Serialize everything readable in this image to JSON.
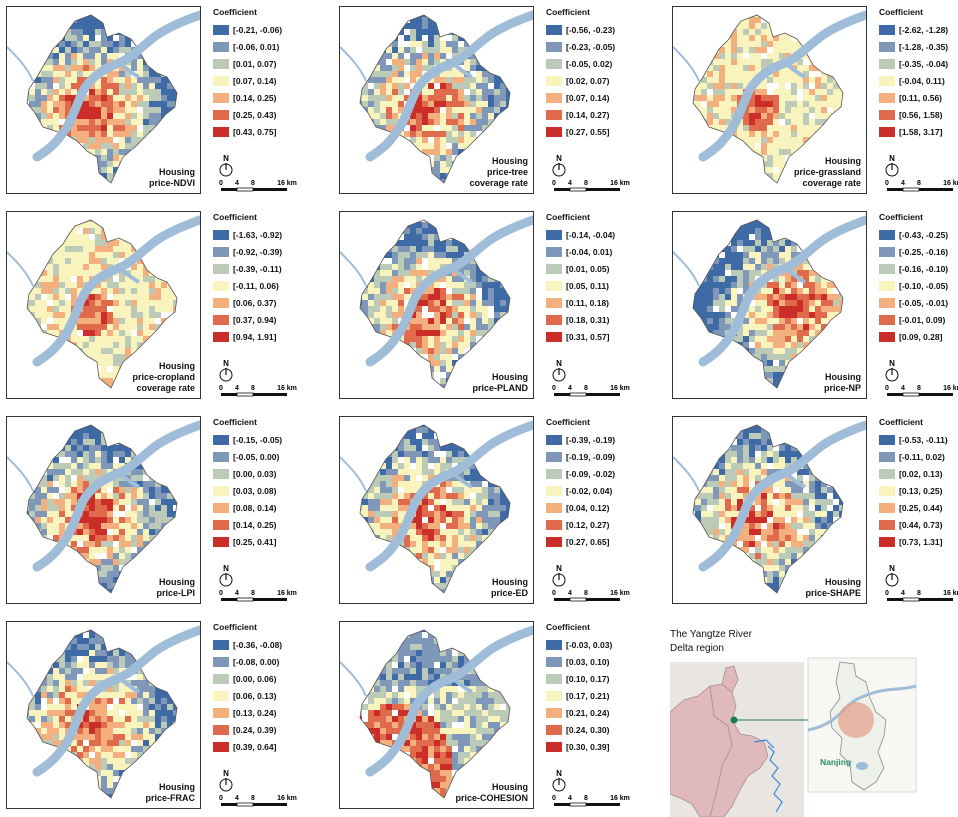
{
  "legend_title": "Coefficient",
  "north_label": "N",
  "scale": {
    "zero": "0",
    "four": "4",
    "eight": "8",
    "sixteen": "16 km"
  },
  "colors": [
    "#3e6aa6",
    "#7f98ba",
    "#bccab8",
    "#f9f3bd",
    "#f3b07e",
    "#e06a4c",
    "#cb2d29"
  ],
  "water_color": "#9fbcd8",
  "panels": [
    {
      "label": [
        "Housing",
        "price-NDVI"
      ],
      "ranges": [
        "[-0.21, -0.06)",
        "[-0.06, 0.01)",
        "[0.01, 0.07)",
        "[0.07, 0.14)",
        "[0.14, 0.25)",
        "[0.25, 0.43)",
        "[0.43, 0.75]"
      ]
    },
    {
      "label": [
        "Housing",
        "price-tree",
        "coverage rate"
      ],
      "ranges": [
        "[-0.56, -0.23)",
        "[-0.23, -0.05)",
        "[-0.05, 0.02)",
        "[0.02, 0.07)",
        "[0.07, 0.14)",
        "[0.14, 0.27)",
        "[0.27, 0.55]"
      ]
    },
    {
      "label": [
        "Housing",
        "price-grassland",
        "coverage rate"
      ],
      "ranges": [
        "[-2.62, -1.28)",
        "[-1.28, -0.35)",
        "[-0.35, -0.04)",
        "[-0.04, 0.11)",
        "[0.11, 0.56)",
        "[0.56, 1.58)",
        "[1.58, 3.17]"
      ]
    },
    {
      "label": [
        "Housing",
        "price-cropland",
        "coverage rate"
      ],
      "ranges": [
        "[-1.63, -0.92)",
        "[-0.92, -0.39)",
        "[-0.39, -0.11)",
        "[-0.11, 0.06)",
        "[0.06, 0.37)",
        "[0.37, 0.94)",
        "[0.94, 1.91]"
      ]
    },
    {
      "label": [
        "Housing",
        "price-PLAND"
      ],
      "ranges": [
        "[-0.14, -0.04)",
        "[-0.04, 0.01)",
        "[0.01, 0.05)",
        "[0.05, 0.11)",
        "[0.11, 0.18)",
        "[0.18, 0.31)",
        "[0.31, 0.57]"
      ]
    },
    {
      "label": [
        "Housing",
        "price-NP"
      ],
      "ranges": [
        "[-0.43, -0.25)",
        "[-0.25, -0.16)",
        "[-0.16, -0.10)",
        "[-0.10, -0.05)",
        "[-0.05, -0.01)",
        "[-0.01, 0.09)",
        "[0.09, 0.28]"
      ]
    },
    {
      "label": [
        "Housing",
        "price-LPI"
      ],
      "ranges": [
        "[-0.15, -0.05)",
        "[-0.05, 0.00)",
        "[0.00, 0.03)",
        "[0.03, 0.08)",
        "[0.08, 0.14)",
        "[0.14, 0.25)",
        "[0.25, 0.41]"
      ]
    },
    {
      "label": [
        "Housing",
        "price-ED"
      ],
      "ranges": [
        "[-0.39, -0.19)",
        "[-0.19, -0.09)",
        "[-0.09, -0.02)",
        "[-0.02, 0.04)",
        "[0.04, 0.12)",
        "[0.12, 0.27)",
        "[0.27, 0.65]"
      ]
    },
    {
      "label": [
        "Housing",
        "price-SHAPE"
      ],
      "ranges": [
        "[-0.53, -0.11)",
        "[-0.11, 0.02)",
        "[0.02, 0.13)",
        "[0.13, 0.25)",
        "[0.25, 0.44)",
        "[0.44, 0.73)",
        "[0.73, 1.31]"
      ]
    },
    {
      "label": [
        "Housing",
        "price-FRAC"
      ],
      "ranges": [
        "[-0.36, -0.08)",
        "[-0.08, 0.00)",
        "[0.00, 0.06)",
        "[0.06, 0.13)",
        "[0.13, 0.24)",
        "[0.24, 0.39)",
        "[0.39, 0.64]"
      ]
    },
    {
      "label": [
        "Housing",
        "price-COHESION"
      ],
      "ranges": [
        "[-0.03, 0.03)",
        "[0.03, 0.10)",
        "[0.10, 0.17)",
        "[0.17, 0.21)",
        "[0.21, 0.24)",
        "[0.24, 0.30)",
        "[0.30, 0.39]"
      ]
    }
  ],
  "inset": {
    "title": [
      "The Yangtze River",
      "Delta region"
    ],
    "city_label": "Nanjing"
  }
}
